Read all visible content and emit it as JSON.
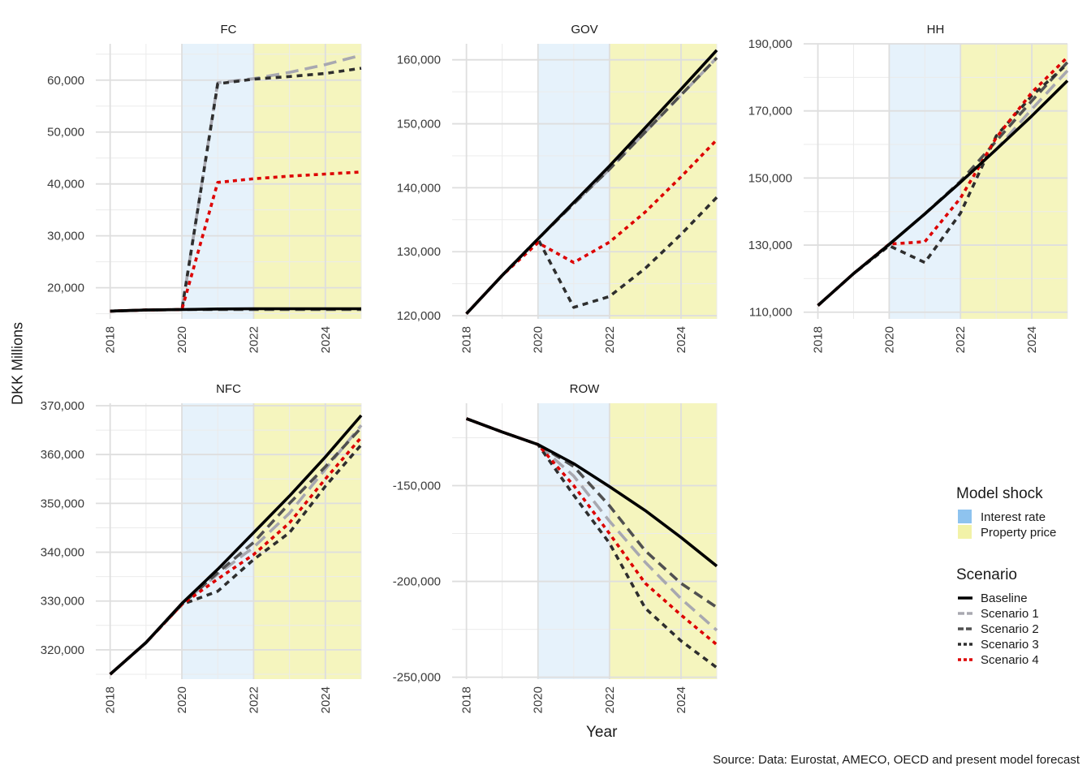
{
  "y_axis_label": "DKK Millions",
  "x_axis_label": "Year",
  "caption": "Source: Data: Eurostat, AMECO, OECD and present model forecast",
  "legend_shock": {
    "title": "Model shock",
    "items": [
      {
        "label": "Interest rate",
        "color": "#8ec3ef"
      },
      {
        "label": "Property price",
        "color": "#f2f2a8"
      }
    ]
  },
  "legend_scenario": {
    "title": "Scenario",
    "items": [
      {
        "label": "Baseline",
        "color": "#000000",
        "style": "solid"
      },
      {
        "label": "Scenario 1",
        "color": "#a8a8b0",
        "style": "longdash"
      },
      {
        "label": "Scenario 2",
        "color": "#505050",
        "style": "dash"
      },
      {
        "label": "Scenario 3",
        "color": "#2e2e2e",
        "style": "shortdash"
      },
      {
        "label": "Scenario 4",
        "color": "#dd0000",
        "style": "dotted"
      }
    ]
  },
  "chart_data": [
    {
      "type": "line",
      "title": "FC",
      "x": [
        2018,
        2019,
        2020,
        2021,
        2022,
        2023,
        2024,
        2025
      ],
      "xlim": [
        2017.6,
        2025
      ],
      "ylim": [
        14000,
        67000
      ],
      "y_ticks": [
        20000,
        30000,
        40000,
        50000,
        60000
      ],
      "y_tick_labels": [
        "20,000",
        "30,000",
        "40,000",
        "50,000",
        "60,000"
      ],
      "x_tick_labels": [
        "2018",
        "2020",
        "2022",
        "2024"
      ],
      "shading": [
        {
          "from": 2020,
          "to": 2022,
          "shock": "Interest rate"
        },
        {
          "from": 2022,
          "to": 2025,
          "shock": "Property price"
        }
      ],
      "series": [
        {
          "name": "Baseline",
          "values": [
            15500,
            15700,
            15800,
            15900,
            15950,
            15950,
            15950,
            15950
          ]
        },
        {
          "name": "Scenario 1",
          "values": [
            15500,
            15700,
            15800,
            59500,
            60300,
            61500,
            63000,
            64800
          ]
        },
        {
          "name": "Scenario 2",
          "values": [
            15500,
            15700,
            15800,
            15800,
            15800,
            15800,
            15800,
            15800
          ]
        },
        {
          "name": "Scenario 3",
          "values": [
            15500,
            15700,
            15800,
            59300,
            60200,
            60700,
            61300,
            62300
          ]
        },
        {
          "name": "Scenario 4",
          "values": [
            15500,
            15700,
            15800,
            40300,
            41000,
            41500,
            41900,
            42300
          ]
        }
      ]
    },
    {
      "type": "line",
      "title": "GOV",
      "x": [
        2018,
        2019,
        2020,
        2021,
        2022,
        2023,
        2024,
        2025
      ],
      "xlim": [
        2017.6,
        2025
      ],
      "ylim": [
        119500,
        162500
      ],
      "y_ticks": [
        120000,
        130000,
        140000,
        150000,
        160000
      ],
      "y_tick_labels": [
        "120,000",
        "130,000",
        "140,000",
        "150,000",
        "160,000"
      ],
      "x_tick_labels": [
        "2018",
        "2020",
        "2022",
        "2024"
      ],
      "shading": [
        {
          "from": 2020,
          "to": 2022,
          "shock": "Interest rate"
        },
        {
          "from": 2022,
          "to": 2025,
          "shock": "Property price"
        }
      ],
      "series": [
        {
          "name": "Baseline",
          "values": [
            120300,
            126300,
            132000,
            137700,
            143400,
            149400,
            155400,
            161500
          ]
        },
        {
          "name": "Scenario 1",
          "values": [
            120300,
            126300,
            132000,
            137500,
            142900,
            148700,
            154500,
            160300
          ]
        },
        {
          "name": "Scenario 2",
          "values": [
            120300,
            126300,
            132000,
            137500,
            142900,
            148700,
            154500,
            160300
          ]
        },
        {
          "name": "Scenario 3",
          "values": [
            120300,
            126300,
            132000,
            121300,
            123000,
            127400,
            132700,
            138500
          ]
        },
        {
          "name": "Scenario 4",
          "values": [
            120300,
            126300,
            131400,
            128300,
            131500,
            136200,
            141700,
            147500
          ]
        }
      ]
    },
    {
      "type": "line",
      "title": "HH",
      "x": [
        2018,
        2019,
        2020,
        2021,
        2022,
        2023,
        2024,
        2025
      ],
      "xlim": [
        2017.6,
        2025
      ],
      "ylim": [
        108000,
        190000
      ],
      "y_ticks": [
        110000,
        130000,
        150000,
        170000,
        190000
      ],
      "y_tick_labels": [
        "110,000",
        "130,000",
        "150,000",
        "170,000",
        "190,000"
      ],
      "x_tick_labels": [
        "2018",
        "2020",
        "2022",
        "2024"
      ],
      "shading": [
        {
          "from": 2020,
          "to": 2022,
          "shock": "Interest rate"
        },
        {
          "from": 2022,
          "to": 2025,
          "shock": "Property price"
        }
      ],
      "series": [
        {
          "name": "Baseline",
          "values": [
            112000,
            121500,
            130200,
            139300,
            148700,
            158500,
            168500,
            179000
          ]
        },
        {
          "name": "Scenario 1",
          "values": [
            112000,
            121500,
            130200,
            139300,
            148700,
            158500,
            170500,
            182000
          ]
        },
        {
          "name": "Scenario 2",
          "values": [
            112000,
            121500,
            130200,
            139300,
            149000,
            161000,
            173000,
            184500
          ]
        },
        {
          "name": "Scenario 3",
          "values": [
            112000,
            121500,
            129800,
            124800,
            139500,
            162500,
            174500,
            184000
          ]
        },
        {
          "name": "Scenario 4",
          "values": [
            112000,
            121500,
            130300,
            131000,
            144000,
            162000,
            175500,
            186000
          ]
        }
      ]
    },
    {
      "type": "line",
      "title": "NFC",
      "x": [
        2018,
        2019,
        2020,
        2021,
        2022,
        2023,
        2024,
        2025
      ],
      "xlim": [
        2017.6,
        2025
      ],
      "ylim": [
        314000,
        370500
      ],
      "y_ticks": [
        320000,
        330000,
        340000,
        350000,
        360000,
        370000
      ],
      "y_tick_labels": [
        "320,000",
        "330,000",
        "340,000",
        "350,000",
        "360,000",
        "370,000"
      ],
      "x_tick_labels": [
        "2018",
        "2020",
        "2022",
        "2024"
      ],
      "shading": [
        {
          "from": 2020,
          "to": 2022,
          "shock": "Interest rate"
        },
        {
          "from": 2022,
          "to": 2025,
          "shock": "Property price"
        }
      ],
      "series": [
        {
          "name": "Baseline",
          "values": [
            315000,
            321500,
            329500,
            336500,
            344000,
            351500,
            359500,
            368000
          ]
        },
        {
          "name": "Scenario 1",
          "values": [
            315000,
            321500,
            329500,
            335500,
            341000,
            348000,
            357000,
            366000
          ]
        },
        {
          "name": "Scenario 2",
          "values": [
            315000,
            321500,
            329300,
            335800,
            342000,
            350000,
            357500,
            365500
          ]
        },
        {
          "name": "Scenario 3",
          "values": [
            315000,
            321500,
            329300,
            332000,
            338500,
            344000,
            353500,
            362000
          ]
        },
        {
          "name": "Scenario 4",
          "values": [
            315000,
            321500,
            329300,
            334500,
            339500,
            346000,
            355000,
            363500
          ]
        }
      ]
    },
    {
      "type": "line",
      "title": "ROW",
      "x": [
        2018,
        2019,
        2020,
        2021,
        2022,
        2023,
        2024,
        2025
      ],
      "xlim": [
        2017.6,
        2025
      ],
      "ylim": [
        -251000,
        -107000
      ],
      "y_ticks": [
        -150000,
        -200000,
        -250000
      ],
      "y_tick_labels": [
        "-150,000",
        "-200,000",
        "-250,000"
      ],
      "x_tick_labels": [
        "2018",
        "2020",
        "2022",
        "2024"
      ],
      "shading": [
        {
          "from": 2020,
          "to": 2022,
          "shock": "Interest rate"
        },
        {
          "from": 2022,
          "to": 2025,
          "shock": "Property price"
        }
      ],
      "series": [
        {
          "name": "Baseline",
          "values": [
            -115000,
            -122000,
            -128500,
            -138500,
            -150500,
            -163000,
            -177000,
            -192000
          ]
        },
        {
          "name": "Scenario 1",
          "values": [
            -115000,
            -122000,
            -128500,
            -145000,
            -168500,
            -190000,
            -209000,
            -225500
          ]
        },
        {
          "name": "Scenario 2",
          "values": [
            -115000,
            -122000,
            -128500,
            -140000,
            -160500,
            -184000,
            -201000,
            -213500
          ]
        },
        {
          "name": "Scenario 3",
          "values": [
            -115000,
            -122000,
            -128500,
            -155000,
            -180000,
            -214000,
            -231000,
            -245000
          ]
        },
        {
          "name": "Scenario 4",
          "values": [
            -115000,
            -122000,
            -128500,
            -150000,
            -175000,
            -201000,
            -217500,
            -233000
          ]
        }
      ]
    }
  ]
}
